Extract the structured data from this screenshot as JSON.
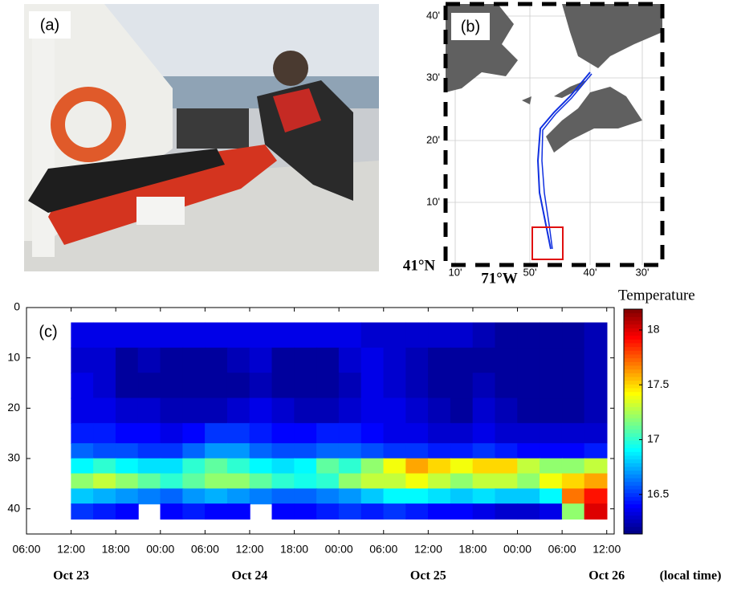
{
  "panels": {
    "photo": {
      "label": "(a)"
    },
    "map": {
      "label": "(b)",
      "lat_ticks": [
        "40'",
        "30'",
        "20'",
        "10'"
      ],
      "lon_ticks": [
        "10'",
        "50'",
        "40'",
        "30'"
      ],
      "lat_label": "41°N",
      "lon_label": "71°W"
    }
  },
  "chart_data": {
    "type": "heatmap",
    "label": "(c)",
    "x_bins": [
      12,
      15,
      18,
      21,
      24,
      27,
      30,
      33,
      36,
      39,
      42,
      45,
      48,
      51,
      54,
      57,
      60,
      63,
      66,
      69,
      72,
      75,
      78,
      81,
      84
    ],
    "y_bins": [
      3,
      8,
      13,
      18,
      23,
      27,
      30,
      33,
      36,
      39,
      42
    ],
    "values": [
      [
        16.35,
        16.35,
        16.35,
        16.35,
        16.35,
        16.35,
        16.35,
        16.35,
        16.35,
        16.35,
        16.35,
        16.35,
        16.35,
        16.3,
        16.3,
        16.3,
        16.3,
        16.3,
        16.25,
        16.2,
        16.2,
        16.2,
        16.2,
        16.25
      ],
      [
        16.3,
        16.3,
        16.2,
        16.25,
        16.2,
        16.2,
        16.2,
        16.25,
        16.3,
        16.2,
        16.2,
        16.2,
        16.3,
        16.35,
        16.3,
        16.25,
        16.2,
        16.2,
        16.2,
        16.2,
        16.2,
        16.2,
        16.2,
        16.25
      ],
      [
        16.35,
        16.3,
        16.2,
        16.2,
        16.2,
        16.2,
        16.2,
        16.2,
        16.25,
        16.2,
        16.2,
        16.2,
        16.25,
        16.35,
        16.3,
        16.25,
        16.2,
        16.2,
        16.25,
        16.2,
        16.2,
        16.2,
        16.2,
        16.25
      ],
      [
        16.35,
        16.35,
        16.3,
        16.3,
        16.25,
        16.25,
        16.25,
        16.3,
        16.35,
        16.3,
        16.25,
        16.25,
        16.3,
        16.35,
        16.35,
        16.3,
        16.25,
        16.2,
        16.3,
        16.25,
        16.2,
        16.2,
        16.2,
        16.25
      ],
      [
        16.45,
        16.45,
        16.4,
        16.4,
        16.35,
        16.4,
        16.5,
        16.5,
        16.45,
        16.4,
        16.4,
        16.45,
        16.45,
        16.4,
        16.35,
        16.35,
        16.3,
        16.3,
        16.35,
        16.3,
        16.3,
        16.3,
        16.3,
        16.3
      ],
      [
        16.6,
        16.55,
        16.55,
        16.5,
        16.5,
        16.6,
        16.7,
        16.7,
        16.6,
        16.55,
        16.55,
        16.6,
        16.6,
        16.55,
        16.5,
        16.5,
        16.45,
        16.45,
        16.5,
        16.45,
        16.4,
        16.4,
        16.4,
        16.45
      ],
      [
        16.9,
        17.0,
        16.9,
        16.85,
        16.85,
        17.0,
        17.1,
        17.0,
        16.9,
        16.85,
        16.9,
        17.1,
        17.0,
        17.2,
        17.4,
        17.6,
        17.5,
        17.4,
        17.5,
        17.5,
        17.3,
        17.2,
        17.2,
        17.3
      ],
      [
        17.2,
        17.3,
        17.2,
        17.1,
        17.0,
        17.1,
        17.2,
        17.2,
        17.1,
        17.0,
        16.95,
        17.0,
        17.2,
        17.3,
        17.3,
        17.4,
        17.3,
        17.2,
        17.3,
        17.3,
        17.2,
        17.4,
        17.5,
        17.6
      ],
      [
        16.8,
        16.75,
        16.7,
        16.65,
        16.6,
        16.7,
        16.75,
        16.7,
        16.65,
        16.6,
        16.6,
        16.65,
        16.7,
        16.8,
        16.9,
        16.9,
        16.85,
        16.8,
        16.85,
        16.8,
        16.8,
        16.9,
        17.7,
        17.9
      ],
      [
        16.5,
        16.45,
        16.4,
        null,
        16.4,
        16.45,
        16.4,
        16.4,
        null,
        16.4,
        16.4,
        16.45,
        16.5,
        16.45,
        16.5,
        16.45,
        16.4,
        16.4,
        16.35,
        16.3,
        16.3,
        16.35,
        17.2,
        18.0
      ]
    ],
    "xlim": [
      6,
      85
    ],
    "xticks": [
      {
        "value": 6,
        "label": "06:00"
      },
      {
        "value": 12,
        "label": "12:00"
      },
      {
        "value": 18,
        "label": "18:00"
      },
      {
        "value": 24,
        "label": "00:00"
      },
      {
        "value": 30,
        "label": "06:00"
      },
      {
        "value": 36,
        "label": "12:00"
      },
      {
        "value": 42,
        "label": "18:00"
      },
      {
        "value": 48,
        "label": "00:00"
      },
      {
        "value": 54,
        "label": "06:00"
      },
      {
        "value": 60,
        "label": "12:00"
      },
      {
        "value": 66,
        "label": "18:00"
      },
      {
        "value": 72,
        "label": "00:00"
      },
      {
        "value": 78,
        "label": "06:00"
      },
      {
        "value": 84,
        "label": "12:00"
      }
    ],
    "x_date_labels": [
      {
        "value": 12,
        "label": "Oct 23"
      },
      {
        "value": 36,
        "label": "Oct 24"
      },
      {
        "value": 60,
        "label": "Oct 25"
      },
      {
        "value": 84,
        "label": "Oct 26"
      }
    ],
    "x_unit_label": "(local time)",
    "ylim": [
      0,
      45
    ],
    "y_inverted": true,
    "yticks": [
      0,
      10,
      20,
      30,
      40
    ],
    "colorbar": {
      "title": "Temperature",
      "colormap": "jet",
      "lim": [
        16.14,
        18.19
      ],
      "ticks": [
        16.5,
        17,
        17.5,
        18
      ]
    }
  }
}
